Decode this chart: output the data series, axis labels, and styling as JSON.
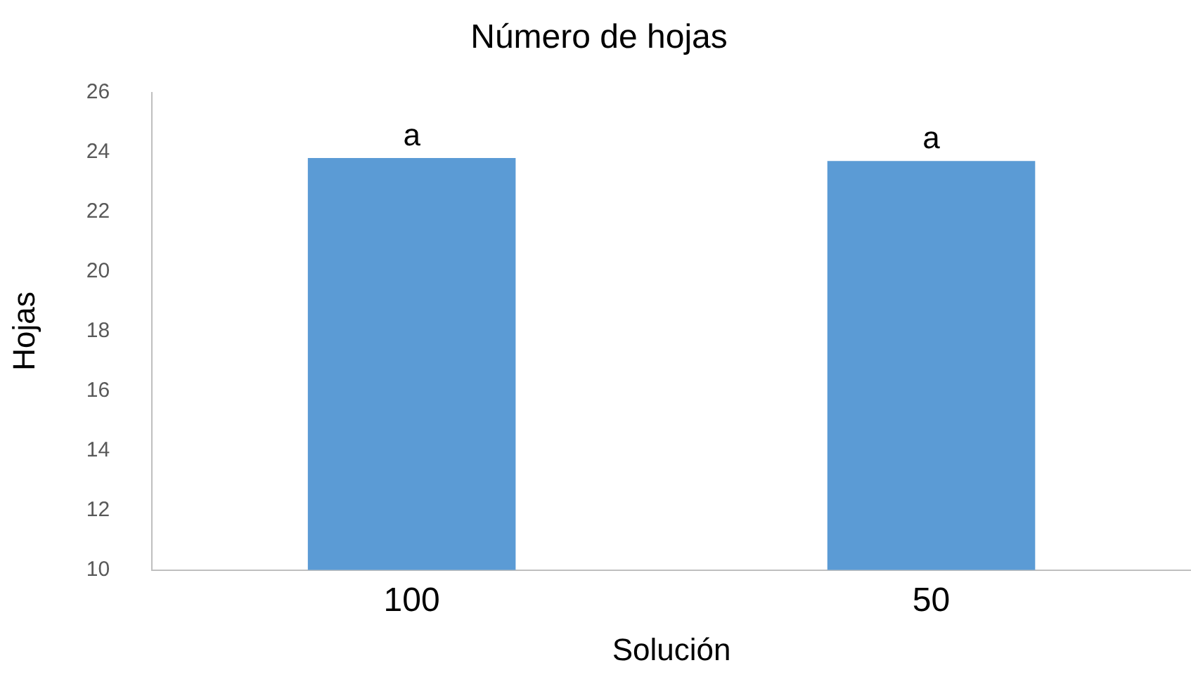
{
  "chart_data": {
    "type": "bar",
    "title": "Número de hojas",
    "xlabel": "Solución",
    "ylabel": "Hojas",
    "categories": [
      "100",
      "50"
    ],
    "series": [
      {
        "color": "#5b9bd5",
        "values": [
          23.8,
          23.7
        ]
      }
    ],
    "ylim": [
      10,
      26
    ],
    "yticks": [
      10,
      12,
      14,
      16,
      18,
      20,
      22,
      24,
      26
    ],
    "grid": false,
    "legend": false,
    "annotations": [
      {
        "text": "a",
        "x": "100",
        "y": 23.8
      },
      {
        "text": "a",
        "x": "50",
        "y": 23.7
      }
    ]
  }
}
